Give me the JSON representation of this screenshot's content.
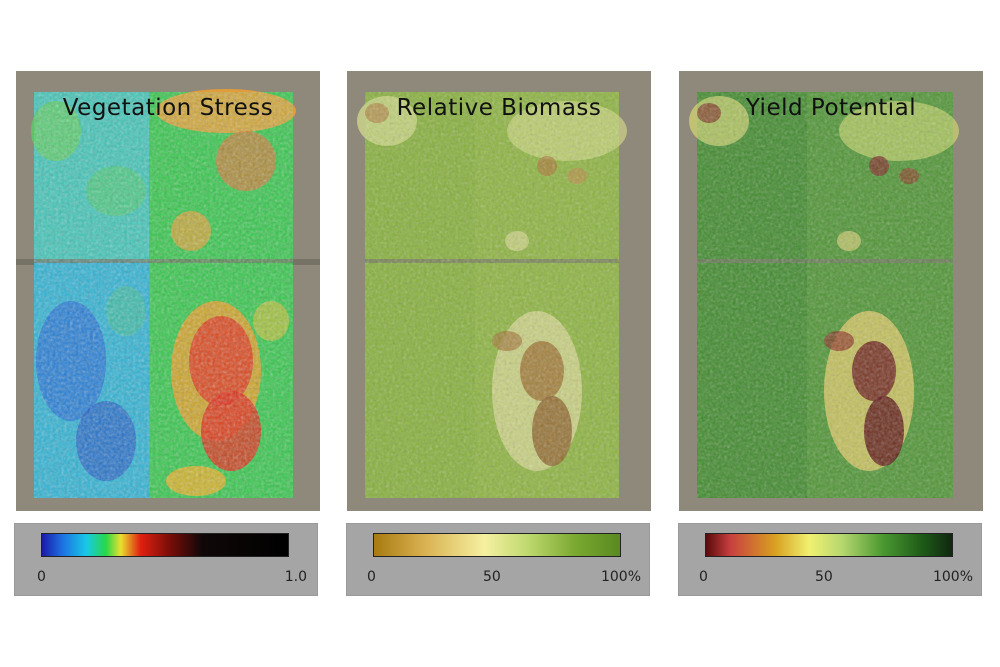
{
  "panels": [
    {
      "title": "Vegetation Stress",
      "legend": {
        "min": "0",
        "mid": "",
        "max": "1.0"
      }
    },
    {
      "title": "Relative Biomass",
      "legend": {
        "min": "0",
        "mid": "50",
        "max": "100%"
      }
    },
    {
      "title": "Yield Potential",
      "legend": {
        "min": "0",
        "mid": "50",
        "max": "100%"
      }
    }
  ],
  "colors": {
    "stress_ramp": [
      "#1a1aa8",
      "#1e6ee0",
      "#18c8e8",
      "#28d848",
      "#e8e030",
      "#e02010",
      "#7a0d08",
      "#100808",
      "#000000"
    ],
    "biomass_ramp": [
      "#a87a10",
      "#d8b050",
      "#f5f0a0",
      "#c0da70",
      "#7aa830",
      "#5a8a20"
    ],
    "yield_ramp": [
      "#5a0a0a",
      "#c84040",
      "#d8a020",
      "#f0f070",
      "#b8d870",
      "#4a9830",
      "#1e5a18",
      "#102810"
    ]
  }
}
